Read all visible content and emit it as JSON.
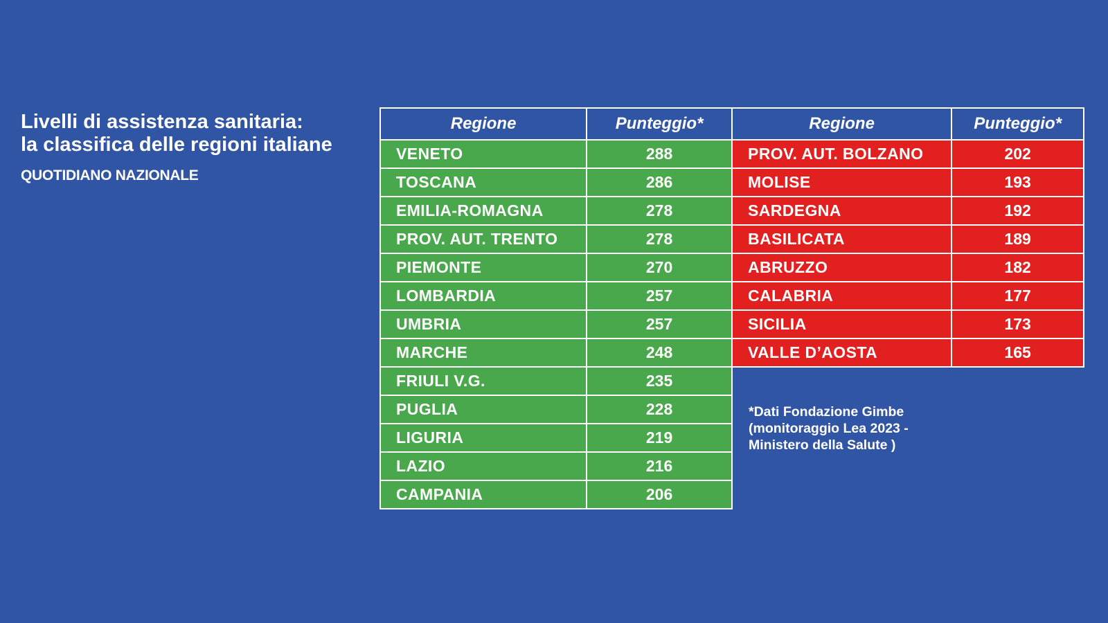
{
  "title_lines": [
    "Livelli di assistenza sanitaria:",
    "la classifica delle regioni italiane"
  ],
  "source_label": "QUOTIDIANO NAZIONALE",
  "colors": {
    "background": "#3155a5",
    "top_group": "#4aa84c",
    "bottom_group": "#e32020",
    "border": "#ffffff"
  },
  "chart_data": {
    "type": "table",
    "columns": [
      "Regione",
      "Punteggio*"
    ],
    "left_table": {
      "headers": [
        "Regione",
        "Punteggio*"
      ],
      "rows": [
        {
          "region": "VENETO",
          "score": 288
        },
        {
          "region": "TOSCANA",
          "score": 286
        },
        {
          "region": "EMILIA-ROMAGNA",
          "score": 278
        },
        {
          "region": "PROV. AUT. TRENTO",
          "score": 278
        },
        {
          "region": "PIEMONTE",
          "score": 270
        },
        {
          "region": "LOMBARDIA",
          "score": 257
        },
        {
          "region": "UMBRIA",
          "score": 257
        },
        {
          "region": "MARCHE",
          "score": 248
        },
        {
          "region": "FRIULI V.G.",
          "score": 235
        },
        {
          "region": "PUGLIA",
          "score": 228
        },
        {
          "region": "LIGURIA",
          "score": 219
        },
        {
          "region": "LAZIO",
          "score": 216
        },
        {
          "region": "CAMPANIA",
          "score": 206
        }
      ]
    },
    "right_table": {
      "headers": [
        "Regione",
        "Punteggio*"
      ],
      "rows": [
        {
          "region": "PROV. AUT. BOLZANO",
          "score": 202
        },
        {
          "region": "MOLISE",
          "score": 193
        },
        {
          "region": "SARDEGNA",
          "score": 192
        },
        {
          "region": "BASILICATA",
          "score": 189
        },
        {
          "region": "ABRUZZO",
          "score": 182
        },
        {
          "region": "CALABRIA",
          "score": 177
        },
        {
          "region": "SICILIA",
          "score": 173
        },
        {
          "region": "VALLE D’AOSTA",
          "score": 165
        }
      ]
    }
  },
  "footnote_lines": [
    "*Dati Fondazione Gimbe",
    "(monitoraggio Lea 2023 -",
    "Ministero della Salute )"
  ]
}
